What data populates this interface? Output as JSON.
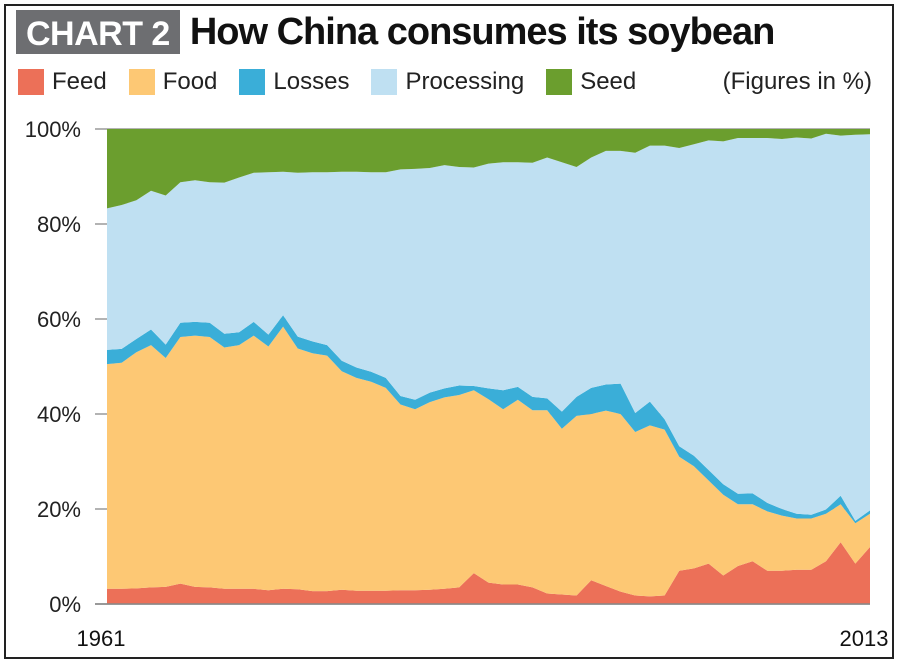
{
  "header": {
    "badge": "CHART 2",
    "title": "How China consumes its soybean"
  },
  "note": "(Figures in %)",
  "colors": {
    "feed": "#ec7058",
    "food": "#fdc874",
    "losses": "#3aaed8",
    "processing": "#bfe0f2",
    "seed": "#6b9e2e"
  },
  "chart_data": {
    "type": "area",
    "stacked": true,
    "title": "How China consumes its soybean",
    "xlabel": "",
    "ylabel": "",
    "unit_note": "(Figures in %)",
    "ylim": [
      0,
      100
    ],
    "yticks": [
      "0%",
      "20%",
      "40%",
      "60%",
      "80%",
      "100%"
    ],
    "xticks": [
      "1961",
      "2013"
    ],
    "legend_position": "top",
    "x": [
      1961,
      1962,
      1963,
      1964,
      1965,
      1966,
      1967,
      1968,
      1969,
      1970,
      1971,
      1972,
      1973,
      1974,
      1975,
      1976,
      1977,
      1978,
      1979,
      1980,
      1981,
      1982,
      1983,
      1984,
      1985,
      1986,
      1987,
      1988,
      1989,
      1990,
      1991,
      1992,
      1993,
      1994,
      1995,
      1996,
      1997,
      1998,
      1999,
      2000,
      2001,
      2002,
      2003,
      2004,
      2005,
      2006,
      2007,
      2008,
      2009,
      2010,
      2011,
      2012,
      2013
    ],
    "series": [
      {
        "name": "Feed",
        "values": [
          3.2,
          3.2,
          3.3,
          3.5,
          3.6,
          4.3,
          3.6,
          3.5,
          3.2,
          3.2,
          3.2,
          2.9,
          3.2,
          3.1,
          2.7,
          2.7,
          3.0,
          2.8,
          2.8,
          2.8,
          2.9,
          2.9,
          3.0,
          3.2,
          3.5,
          6.5,
          4.5,
          4.1,
          4.1,
          3.5,
          2.2,
          2.0,
          1.8,
          5.0,
          3.8,
          2.6,
          1.8,
          1.6,
          1.8,
          7.0,
          7.5,
          8.5,
          6.0,
          8.0,
          9.0,
          7.0,
          7.0,
          7.2,
          7.2,
          9.0,
          13.0,
          8.5,
          12.0
        ]
      },
      {
        "name": "Food",
        "values": [
          47.3,
          47.6,
          49.7,
          51.0,
          48.2,
          51.9,
          52.9,
          52.7,
          50.8,
          51.3,
          53.3,
          51.3,
          55.2,
          50.7,
          50.1,
          49.6,
          46.0,
          44.8,
          44.0,
          42.7,
          39.1,
          38.1,
          39.5,
          40.3,
          40.5,
          38.5,
          38.6,
          36.9,
          38.9,
          37.3,
          38.6,
          34.9,
          37.8,
          35.0,
          36.9,
          37.4,
          34.4,
          36.0,
          34.9,
          24.0,
          21.5,
          17.5,
          17.0,
          13.0,
          12.0,
          12.5,
          11.6,
          10.8,
          10.8,
          10.0,
          8.0,
          8.5,
          7.0
        ]
      },
      {
        "name": "Losses",
        "values": [
          3.0,
          2.9,
          2.8,
          3.3,
          2.8,
          3.0,
          2.9,
          3.0,
          2.9,
          2.7,
          2.9,
          2.5,
          2.4,
          2.5,
          2.5,
          2.2,
          2.2,
          2.2,
          2.1,
          2.1,
          1.8,
          2.0,
          2.0,
          1.9,
          2.0,
          0.9,
          2.3,
          4.0,
          2.7,
          2.8,
          2.5,
          3.6,
          4.0,
          5.5,
          5.5,
          6.4,
          4.0,
          5.0,
          2.2,
          2.2,
          2.2,
          2.2,
          2.2,
          2.2,
          2.3,
          1.8,
          1.4,
          1.0,
          0.8,
          0.9,
          1.8,
          0.5,
          0.7
        ]
      },
      {
        "name": "Processing",
        "values": [
          29.8,
          30.3,
          29.2,
          29.2,
          31.4,
          29.6,
          29.8,
          29.6,
          31.8,
          32.6,
          31.4,
          34.2,
          30.2,
          34.5,
          35.6,
          36.4,
          39.8,
          41.2,
          42.0,
          43.3,
          47.7,
          48.6,
          47.3,
          47.0,
          46.0,
          46.0,
          47.3,
          48.0,
          47.3,
          49.3,
          50.7,
          52.5,
          48.4,
          48.5,
          49.2,
          49.0,
          54.8,
          53.9,
          57.6,
          62.8,
          65.6,
          69.4,
          72.2,
          74.9,
          74.8,
          76.8,
          77.9,
          79.2,
          79.2,
          79.1,
          75.8,
          81.3,
          79.2
        ]
      },
      {
        "name": "Seed",
        "values": [
          16.7,
          16.0,
          15.0,
          13.0,
          14.0,
          11.2,
          10.8,
          11.2,
          11.3,
          10.2,
          9.2,
          9.1,
          9.0,
          9.2,
          9.1,
          9.1,
          9.0,
          9.0,
          9.1,
          9.1,
          8.5,
          8.4,
          8.2,
          7.6,
          8.0,
          8.1,
          7.3,
          7.0,
          7.0,
          7.1,
          6.0,
          7.0,
          8.0,
          6.0,
          4.6,
          4.6,
          5.0,
          3.5,
          3.5,
          4.0,
          3.2,
          2.4,
          2.6,
          1.9,
          1.9,
          1.9,
          2.1,
          1.8,
          2.0,
          1.0,
          1.4,
          1.2,
          1.1
        ]
      }
    ]
  }
}
